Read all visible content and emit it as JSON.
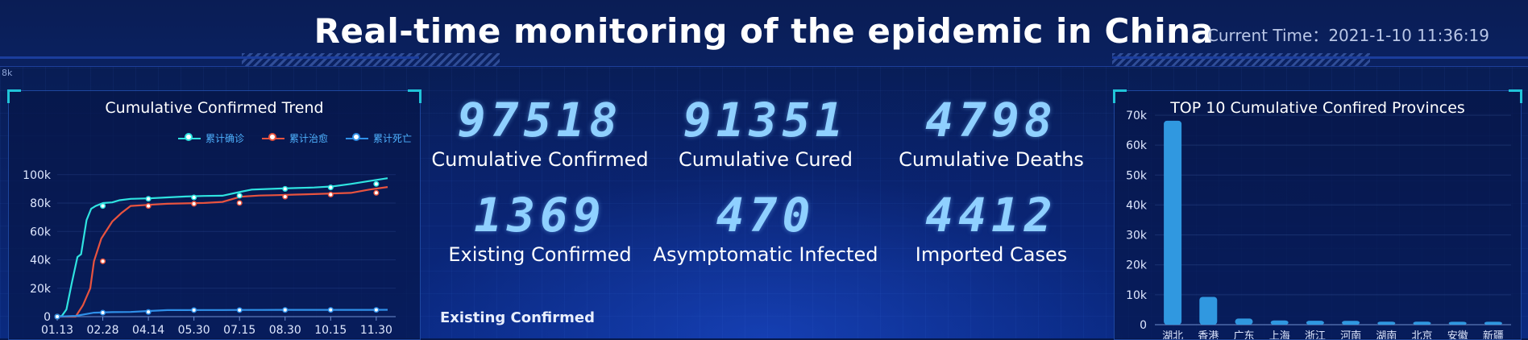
{
  "header": {
    "title": "Real-time monitoring of the epidemic in China",
    "time_label": "Current Time：",
    "time_value": "2021-1-10 11:36:19",
    "corner_label": "8k"
  },
  "stats": [
    {
      "value": "97518",
      "label": "Cumulative Confirmed"
    },
    {
      "value": "91351",
      "label": "Cumulative Cured"
    },
    {
      "value": "4798",
      "label": "Cumulative Deaths"
    },
    {
      "value": "1369",
      "label": "Existing Confirmed"
    },
    {
      "value": "470",
      "label": "Asymptomatic Infected"
    },
    {
      "value": "4412",
      "label": "Imported Cases"
    }
  ],
  "center_subheading": "Existing Confirmed",
  "colors": {
    "confirmed": "#2fe3e0",
    "cured": "#e8533f",
    "deaths": "#2f8fe8",
    "bar": "#3098e0",
    "digits": "#8fd0ff"
  },
  "chart_data": [
    {
      "type": "line",
      "title": "Cumulative Confirmed Trend",
      "categories": [
        "01.13",
        "02.28",
        "04.14",
        "05.30",
        "07.15",
        "08.30",
        "10.15",
        "11.30"
      ],
      "series": [
        {
          "name": "累计确诊",
          "values": [
            41,
            78000,
            83000,
            84000,
            85200,
            90000,
            91000,
            93500
          ]
        },
        {
          "name": "累计治愈",
          "values": [
            0,
            39000,
            78000,
            79500,
            80100,
            84500,
            86000,
            87200
          ]
        },
        {
          "name": "累计死亡",
          "values": [
            0,
            2800,
            3300,
            4600,
            4600,
            4700,
            4750,
            4760
          ]
        }
      ],
      "series_points": [
        {
          "name": "累计确诊",
          "points": [
            [
              0,
              41
            ],
            [
              0.25,
              500
            ],
            [
              0.5,
              5000
            ],
            [
              0.8,
              24000
            ],
            [
              1.1,
              42000
            ],
            [
              1.3,
              44000
            ],
            [
              1.6,
              68000
            ],
            [
              1.85,
              76000
            ],
            [
              2.1,
              78000
            ],
            [
              2.5,
              80000
            ],
            [
              3,
              80500
            ],
            [
              3.4,
              82000
            ],
            [
              4,
              83000
            ],
            [
              5,
              83300
            ],
            [
              6,
              84000
            ],
            [
              7,
              84600
            ],
            [
              8,
              85000
            ],
            [
              9,
              85200
            ],
            [
              10,
              88000
            ],
            [
              10.6,
              89500
            ],
            [
              12,
              90200
            ],
            [
              13,
              90600
            ],
            [
              14,
              91000
            ],
            [
              15,
              91700
            ],
            [
              16,
              93500
            ],
            [
              17,
              95500
            ],
            [
              18,
              97500
            ]
          ]
        },
        {
          "name": "累计治愈",
          "points": [
            [
              0,
              0
            ],
            [
              1,
              0
            ],
            [
              1.4,
              8000
            ],
            [
              1.8,
              20000
            ],
            [
              2,
              39000
            ],
            [
              2.4,
              55000
            ],
            [
              3,
              67000
            ],
            [
              3.5,
              73000
            ],
            [
              4,
              78000
            ],
            [
              5,
              78800
            ],
            [
              6,
              79500
            ],
            [
              7,
              79800
            ],
            [
              8,
              80100
            ],
            [
              9,
              80800
            ],
            [
              10,
              84500
            ],
            [
              11,
              85300
            ],
            [
              12,
              85600
            ],
            [
              13,
              86000
            ],
            [
              14,
              86300
            ],
            [
              15,
              86800
            ],
            [
              16,
              87200
            ],
            [
              17,
              89500
            ],
            [
              18,
              91300
            ]
          ]
        },
        {
          "name": "累计死亡",
          "points": [
            [
              0,
              0
            ],
            [
              1,
              500
            ],
            [
              2,
              2800
            ],
            [
              3,
              3200
            ],
            [
              4,
              3300
            ],
            [
              5,
              4000
            ],
            [
              6,
              4600
            ],
            [
              7,
              4620
            ],
            [
              8,
              4640
            ],
            [
              9,
              4650
            ],
            [
              10,
              4700
            ],
            [
              11,
              4720
            ],
            [
              12,
              4740
            ],
            [
              13,
              4750
            ],
            [
              14,
              4755
            ],
            [
              15,
              4760
            ],
            [
              16,
              4770
            ],
            [
              17,
              4780
            ],
            [
              18,
              4798
            ]
          ]
        }
      ],
      "ylim": [
        0,
        105000
      ],
      "yticks": [
        "0",
        "20k",
        "40k",
        "60k",
        "80k",
        "100k"
      ],
      "ytick_values": [
        0,
        20000,
        40000,
        60000,
        80000,
        100000
      ],
      "x_points_max": 18,
      "legend_position": "top-right"
    },
    {
      "type": "bar",
      "title": "TOP 10 Cumulative Confired Provinces",
      "categories": [
        "湖北",
        "香港",
        "广东",
        "上海",
        "浙江",
        "河南",
        "湖南",
        "北京",
        "安徽",
        "新疆"
      ],
      "values": [
        68150,
        9300,
        2050,
        1400,
        1300,
        1290,
        1020,
        1000,
        990,
        980
      ],
      "ylim": [
        0,
        70000
      ],
      "yticks": [
        "0",
        "10k",
        "20k",
        "30k",
        "40k",
        "50k",
        "60k",
        "70k"
      ],
      "ytick_values": [
        0,
        10000,
        20000,
        30000,
        40000,
        50000,
        60000,
        70000
      ]
    }
  ]
}
